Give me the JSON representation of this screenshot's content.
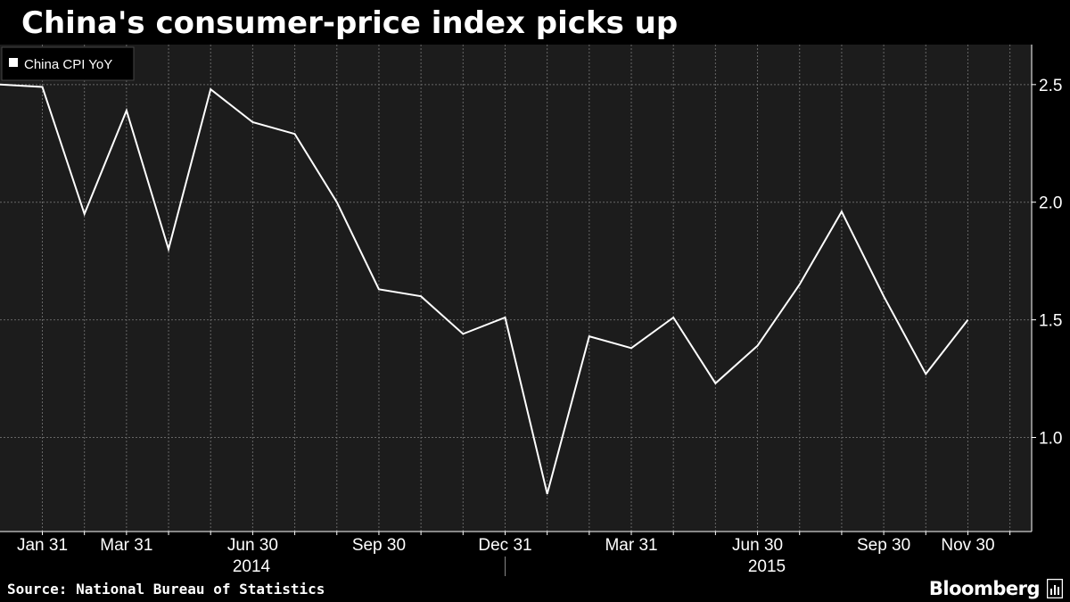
{
  "chart_data": {
    "type": "line",
    "title": "China's consumer-price index picks up",
    "source": "Source: National Bureau of Statistics",
    "brand": "Bloomberg",
    "icon": "bloomberg-terminal-icon",
    "legend": {
      "label": "China CPI YoY",
      "placement": "top-left"
    },
    "colors": {
      "background": "#1c1c1c",
      "line": "#ffffff",
      "grid": "#666666"
    },
    "grid": true,
    "x": [
      "2014-01-31",
      "2014-02-28",
      "2014-03-31",
      "2014-04-30",
      "2014-05-31",
      "2014-06-30",
      "2014-07-31",
      "2014-08-31",
      "2014-09-30",
      "2014-10-31",
      "2014-11-30",
      "2014-12-31",
      "2015-01-31",
      "2015-02-28",
      "2015-03-31",
      "2015-04-30",
      "2015-05-31",
      "2015-06-30",
      "2015-07-31",
      "2015-08-31",
      "2015-09-30",
      "2015-10-31",
      "2015-11-30"
    ],
    "series": [
      {
        "name": "China CPI YoY",
        "values": [
          2.49,
          1.95,
          2.39,
          1.8,
          2.48,
          2.34,
          2.29,
          2.0,
          1.63,
          1.6,
          1.44,
          1.51,
          0.76,
          1.43,
          1.38,
          1.51,
          1.23,
          1.39,
          1.65,
          1.96,
          1.6,
          1.27,
          1.5
        ]
      }
    ],
    "first_value": 2.5,
    "ylim": [
      0.6,
      2.67
    ],
    "yticks": [
      1.0,
      1.5,
      2.0,
      2.5
    ],
    "ytick_labels": [
      "1.0",
      "1.5",
      "2.0",
      "2.5"
    ],
    "xtick_labels": [
      {
        "label": "Jan 31",
        "date": "2014-01-31"
      },
      {
        "label": "Mar 31",
        "date": "2014-03-31"
      },
      {
        "label": "Jun 30",
        "date": "2014-06-30"
      },
      {
        "label": "Sep 30",
        "date": "2014-09-30"
      },
      {
        "label": "Dec 31",
        "date": "2014-12-31"
      },
      {
        "label": "Mar 31",
        "date": "2015-03-31"
      },
      {
        "label": "Jun 30",
        "date": "2015-06-30"
      },
      {
        "label": "Sep 30",
        "date": "2015-09-30"
      },
      {
        "label": "Nov 30",
        "date": "2015-11-30"
      }
    ],
    "year_labels": [
      "2014",
      "2015"
    ]
  }
}
